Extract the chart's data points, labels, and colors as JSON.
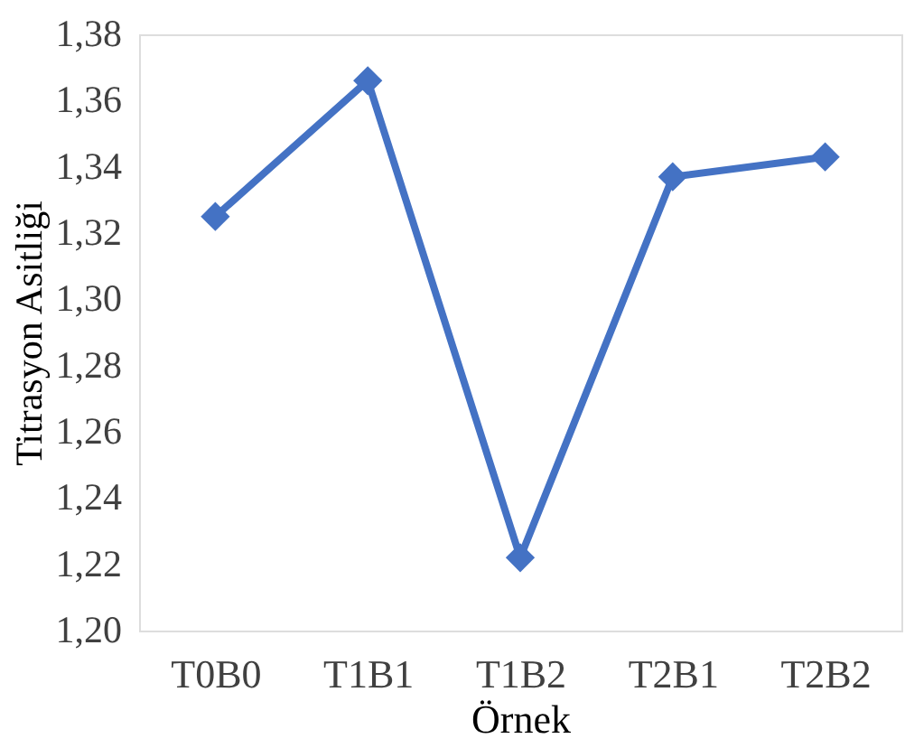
{
  "chart_data": {
    "type": "line",
    "xlabel": "Örnek",
    "ylabel": "Titrasyon Asitliği",
    "categories": [
      "T0B0",
      "T1B1",
      "T1B2",
      "T2B1",
      "T2B2"
    ],
    "series": [
      {
        "color": "#4472c4",
        "values": [
          1.325,
          1.366,
          1.222,
          1.337,
          1.343
        ]
      }
    ],
    "ylim": [
      1.2,
      1.38
    ],
    "yticks": [
      {
        "value": 1.2,
        "label": "1,20"
      },
      {
        "value": 1.22,
        "label": "1,22"
      },
      {
        "value": 1.24,
        "label": "1,24"
      },
      {
        "value": 1.26,
        "label": "1,26"
      },
      {
        "value": 1.28,
        "label": "1,28"
      },
      {
        "value": 1.3,
        "label": "1,30"
      },
      {
        "value": 1.32,
        "label": "1,32"
      },
      {
        "value": 1.34,
        "label": "1,34"
      },
      {
        "value": 1.36,
        "label": "1,36"
      },
      {
        "value": 1.38,
        "label": "1,38"
      }
    ],
    "grid": false,
    "legend": false,
    "marker": "diamond",
    "line_style": "solid"
  }
}
